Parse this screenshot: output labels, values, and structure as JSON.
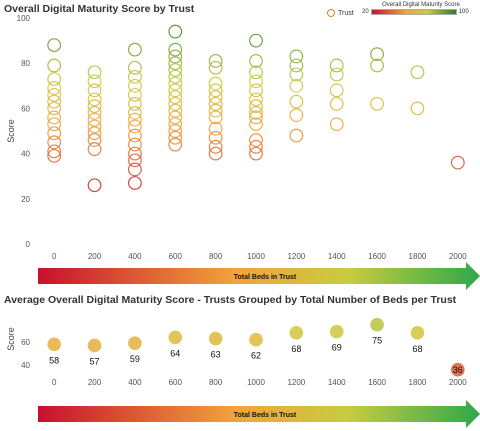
{
  "charts": {
    "top": {
      "title": "Overall Digital Maturity Score by Trust",
      "legend_trust": "Trust",
      "legend_scale_title": "Overall Digital Maturity Score",
      "legend_scale_min": "20",
      "legend_scale_max": "100",
      "arrow_label": "Total Beds in Trust"
    },
    "bottom": {
      "title": "Average Overall Digital Maturity Score - Trusts Grouped by Total Number of Beds per Trust",
      "arrow_label": "Total Beds in Trust"
    }
  },
  "colors": {
    "low": "#c8102e",
    "mid": "#f2a43a",
    "high": "#2e7d32"
  },
  "chart_data": [
    {
      "type": "scatter",
      "title": "Overall Digital Maturity Score by Trust",
      "xlabel": "",
      "ylabel": "Score",
      "xlim": [
        -100,
        2100
      ],
      "ylim": [
        0,
        100
      ],
      "x_ticks": [
        0,
        200,
        400,
        600,
        800,
        1000,
        1200,
        1400,
        1600,
        1800,
        2000
      ],
      "y_ticks": [
        0,
        20,
        40,
        60,
        80,
        100
      ],
      "color_scale": {
        "min": 20,
        "max": 100
      },
      "points": [
        {
          "x": 0,
          "y": 88
        },
        {
          "x": 0,
          "y": 79
        },
        {
          "x": 0,
          "y": 73
        },
        {
          "x": 0,
          "y": 69
        },
        {
          "x": 0,
          "y": 66
        },
        {
          "x": 0,
          "y": 63
        },
        {
          "x": 0,
          "y": 60
        },
        {
          "x": 0,
          "y": 56
        },
        {
          "x": 0,
          "y": 53
        },
        {
          "x": 0,
          "y": 49
        },
        {
          "x": 0,
          "y": 45
        },
        {
          "x": 0,
          "y": 41
        },
        {
          "x": 0,
          "y": 39
        },
        {
          "x": 200,
          "y": 76
        },
        {
          "x": 200,
          "y": 72
        },
        {
          "x": 200,
          "y": 68
        },
        {
          "x": 200,
          "y": 64
        },
        {
          "x": 200,
          "y": 61
        },
        {
          "x": 200,
          "y": 58
        },
        {
          "x": 200,
          "y": 55
        },
        {
          "x": 200,
          "y": 52
        },
        {
          "x": 200,
          "y": 49
        },
        {
          "x": 200,
          "y": 46
        },
        {
          "x": 200,
          "y": 42
        },
        {
          "x": 200,
          "y": 26
        },
        {
          "x": 400,
          "y": 86
        },
        {
          "x": 400,
          "y": 78
        },
        {
          "x": 400,
          "y": 74
        },
        {
          "x": 400,
          "y": 70
        },
        {
          "x": 400,
          "y": 66
        },
        {
          "x": 400,
          "y": 62
        },
        {
          "x": 400,
          "y": 58
        },
        {
          "x": 400,
          "y": 55
        },
        {
          "x": 400,
          "y": 52
        },
        {
          "x": 400,
          "y": 48
        },
        {
          "x": 400,
          "y": 44
        },
        {
          "x": 400,
          "y": 40
        },
        {
          "x": 400,
          "y": 37
        },
        {
          "x": 400,
          "y": 33
        },
        {
          "x": 400,
          "y": 27
        },
        {
          "x": 600,
          "y": 94
        },
        {
          "x": 600,
          "y": 86
        },
        {
          "x": 600,
          "y": 83
        },
        {
          "x": 600,
          "y": 80
        },
        {
          "x": 600,
          "y": 77
        },
        {
          "x": 600,
          "y": 74
        },
        {
          "x": 600,
          "y": 71
        },
        {
          "x": 600,
          "y": 68
        },
        {
          "x": 600,
          "y": 65
        },
        {
          "x": 600,
          "y": 62
        },
        {
          "x": 600,
          "y": 59
        },
        {
          "x": 600,
          "y": 56
        },
        {
          "x": 600,
          "y": 53
        },
        {
          "x": 600,
          "y": 50
        },
        {
          "x": 600,
          "y": 47
        },
        {
          "x": 600,
          "y": 44
        },
        {
          "x": 800,
          "y": 81
        },
        {
          "x": 800,
          "y": 78
        },
        {
          "x": 800,
          "y": 71
        },
        {
          "x": 800,
          "y": 68
        },
        {
          "x": 800,
          "y": 65
        },
        {
          "x": 800,
          "y": 62
        },
        {
          "x": 800,
          "y": 59
        },
        {
          "x": 800,
          "y": 56
        },
        {
          "x": 800,
          "y": 51
        },
        {
          "x": 800,
          "y": 47
        },
        {
          "x": 800,
          "y": 43
        },
        {
          "x": 800,
          "y": 40
        },
        {
          "x": 1000,
          "y": 90
        },
        {
          "x": 1000,
          "y": 81
        },
        {
          "x": 1000,
          "y": 76
        },
        {
          "x": 1000,
          "y": 72
        },
        {
          "x": 1000,
          "y": 68
        },
        {
          "x": 1000,
          "y": 64
        },
        {
          "x": 1000,
          "y": 61
        },
        {
          "x": 1000,
          "y": 58
        },
        {
          "x": 1000,
          "y": 56
        },
        {
          "x": 1000,
          "y": 53
        },
        {
          "x": 1000,
          "y": 46
        },
        {
          "x": 1000,
          "y": 43
        },
        {
          "x": 1000,
          "y": 40
        },
        {
          "x": 1200,
          "y": 83
        },
        {
          "x": 1200,
          "y": 79
        },
        {
          "x": 1200,
          "y": 75
        },
        {
          "x": 1200,
          "y": 70
        },
        {
          "x": 1200,
          "y": 63
        },
        {
          "x": 1200,
          "y": 57
        },
        {
          "x": 1200,
          "y": 48
        },
        {
          "x": 1400,
          "y": 79
        },
        {
          "x": 1400,
          "y": 75
        },
        {
          "x": 1400,
          "y": 68
        },
        {
          "x": 1400,
          "y": 62
        },
        {
          "x": 1400,
          "y": 53
        },
        {
          "x": 1600,
          "y": 84
        },
        {
          "x": 1600,
          "y": 79
        },
        {
          "x": 1600,
          "y": 62
        },
        {
          "x": 1800,
          "y": 76
        },
        {
          "x": 1800,
          "y": 60
        },
        {
          "x": 2000,
          "y": 36
        }
      ]
    },
    {
      "type": "scatter",
      "title": "Average Overall Digital Maturity Score - Trusts Grouped by Total Number of Beds per Trust",
      "xlabel": "",
      "ylabel": "Score",
      "xlim": [
        -100,
        2100
      ],
      "ylim": [
        34,
        86
      ],
      "x_ticks": [
        0,
        200,
        400,
        600,
        800,
        1000,
        1200,
        1400,
        1600,
        1800,
        2000
      ],
      "y_ticks": [
        40,
        60
      ],
      "x": [
        0,
        200,
        400,
        600,
        800,
        1000,
        1200,
        1400,
        1600,
        1800,
        2000
      ],
      "values": [
        58,
        57,
        59,
        64,
        63,
        62,
        68,
        69,
        75,
        68,
        36
      ],
      "data_labels": [
        "58",
        "57",
        "59",
        "64",
        "63",
        "62",
        "68",
        "69",
        "75",
        "68",
        "36"
      ]
    }
  ]
}
